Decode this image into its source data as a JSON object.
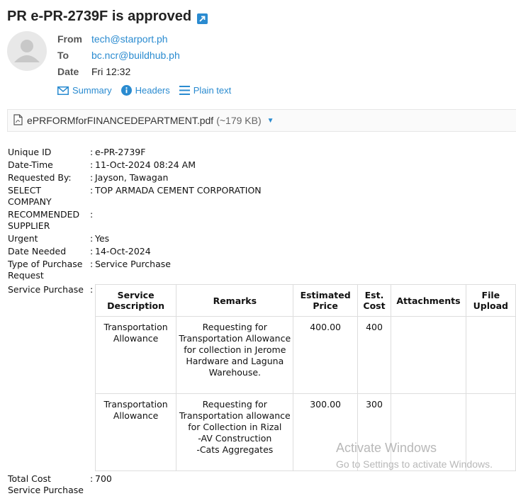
{
  "email": {
    "subject": "PR e-PR-2739F is approved",
    "from_label": "From",
    "from": "tech@starport.ph",
    "to_label": "To",
    "to": "bc.ncr@buildhub.ph",
    "date_label": "Date",
    "date": "Fri 12:32"
  },
  "actions": {
    "summary": "Summary",
    "headers": "Headers",
    "plain_text": "Plain text"
  },
  "attachment": {
    "filename": "ePRFORMforFINANCEDEPARTMENT.pdf",
    "size": "(~179 KB)"
  },
  "fields": [
    {
      "label": "Unique ID",
      "value": "e-PR-2739F"
    },
    {
      "label": "Date-Time",
      "value": "11-Oct-2024 08:24 AM"
    },
    {
      "label": "Requested By:",
      "value": "Jayson, Tawagan"
    },
    {
      "label": "SELECT COMPANY",
      "value": "TOP ARMADA CEMENT CORPORATION"
    },
    {
      "label": "RECOMMENDED SUPPLIER",
      "value": ""
    },
    {
      "label": "Urgent",
      "value": "Yes"
    },
    {
      "label": "Date Needed",
      "value": "14-Oct-2024"
    },
    {
      "label": "Type of Purchase Request",
      "value": "Service Purchase"
    },
    {
      "label": "Service Purchase",
      "value": ""
    },
    {
      "label": "Total Cost",
      "value": "700"
    },
    {
      "label": "Service Purchase",
      "value": ""
    }
  ],
  "table": {
    "headers": [
      "Service Description",
      "Remarks",
      "Estimated Price",
      "Est. Cost",
      "Attachments",
      "File Upload"
    ],
    "rows": [
      [
        "Transportation Allowance",
        "Requesting for Transportation Allowance for collection in Jerome Hardware and Laguna Warehouse.",
        "400.00",
        "400",
        "",
        ""
      ],
      [
        "Transportation Allowance",
        "Requesting for Transportation allowance for Collection in Rizal\n-AV Construction\n-Cats Aggregates",
        "300.00",
        "300",
        "",
        ""
      ]
    ]
  },
  "watermark": {
    "line1": "Activate Windows",
    "line2": "Go to Settings to activate Windows."
  },
  "colors": {
    "link": "#2a8bd0",
    "text": "#222222",
    "border": "#dddddd"
  }
}
